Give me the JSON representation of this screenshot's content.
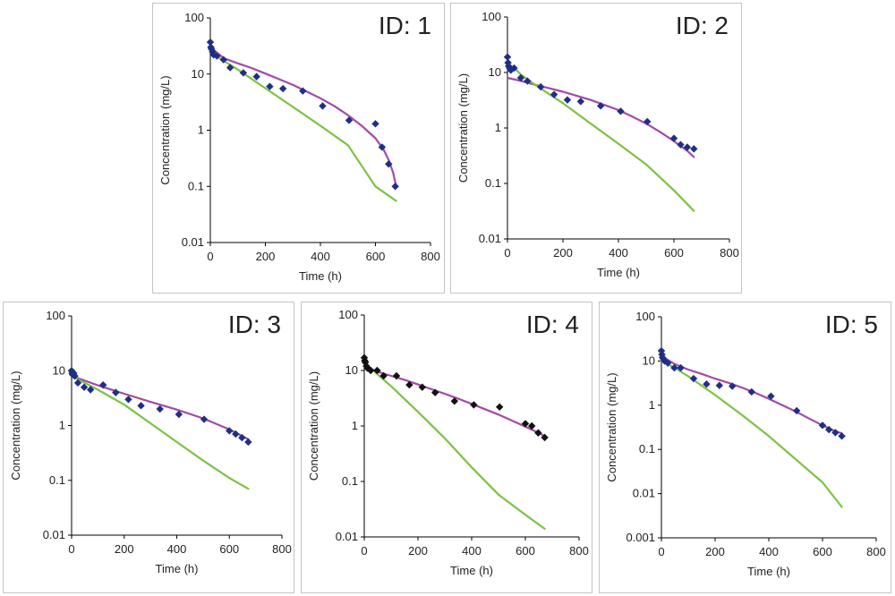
{
  "colors": {
    "marker_blue": "#1f2f86",
    "marker_black": "#111111",
    "fit_line": "#a24aa8",
    "other_line": "#7cc242",
    "axis": "#000000"
  },
  "chart_data": [
    {
      "type": "scatter",
      "title": "ID: 1",
      "xlabel": "Time (h)",
      "ylabel": "Concentration (mg/L)",
      "xlim": [
        0,
        800
      ],
      "ylim": [
        0.01,
        100
      ],
      "yscale": "log",
      "xticks": [
        "0",
        "200",
        "400",
        "600",
        "800"
      ],
      "yticks": [
        "0.01",
        "0.1",
        "1",
        "10",
        "100"
      ],
      "grid": false,
      "marker_color": "#1f2f86",
      "series": [
        {
          "type": "scatter",
          "x": [
            0,
            2,
            4,
            8,
            12,
            24,
            48,
            72,
            120,
            168,
            216,
            264,
            336,
            408,
            504,
            600,
            624,
            648,
            672
          ],
          "y": [
            37,
            30,
            28,
            25,
            22,
            21,
            18,
            13,
            10.5,
            9,
            6,
            5.5,
            5,
            2.7,
            1.5,
            1.3,
            0.5,
            0.25,
            0.1
          ]
        },
        {
          "type": "line",
          "color": "#a24aa8",
          "x": [
            0,
            50,
            100,
            150,
            200,
            250,
            300,
            350,
            400,
            450,
            500,
            550,
            600,
            630,
            650,
            665,
            675
          ],
          "y": [
            30,
            19,
            15.5,
            12.8,
            10.2,
            8.1,
            6.4,
            4.9,
            3.7,
            2.7,
            1.85,
            1.2,
            0.72,
            0.45,
            0.28,
            0.17,
            0.1
          ]
        },
        {
          "type": "line",
          "color": "#7cc242",
          "x": [
            0,
            50,
            100,
            200,
            300,
            400,
            500,
            600,
            675
          ],
          "y": [
            25,
            17,
            12,
            5.6,
            2.6,
            1.2,
            0.54,
            0.1,
            0.055
          ]
        }
      ]
    },
    {
      "type": "scatter",
      "title": "ID: 2",
      "xlabel": "Time (h)",
      "ylabel": "Concentration (mg/L)",
      "xlim": [
        0,
        800
      ],
      "ylim": [
        0.01,
        100
      ],
      "yscale": "log",
      "xticks": [
        "0",
        "200",
        "400",
        "600",
        "800"
      ],
      "yticks": [
        "0.01",
        "0.1",
        "1",
        "10",
        "100"
      ],
      "grid": false,
      "marker_color": "#1f2f86",
      "series": [
        {
          "type": "scatter",
          "x": [
            0,
            2,
            4,
            8,
            12,
            24,
            48,
            72,
            120,
            168,
            216,
            264,
            336,
            408,
            504,
            600,
            624,
            648,
            672
          ],
          "y": [
            19,
            15,
            13,
            12,
            11,
            12,
            8,
            7,
            5.5,
            4,
            3.2,
            3,
            2.5,
            2,
            1.3,
            0.65,
            0.5,
            0.45,
            0.42
          ]
        },
        {
          "type": "line",
          "color": "#a24aa8",
          "x": [
            0,
            50,
            100,
            150,
            200,
            250,
            300,
            350,
            400,
            450,
            500,
            550,
            600,
            650,
            672
          ],
          "y": [
            8,
            7,
            6,
            5.2,
            4.5,
            3.8,
            3.2,
            2.6,
            2.1,
            1.6,
            1.2,
            0.85,
            0.58,
            0.38,
            0.3
          ]
        },
        {
          "type": "line",
          "color": "#7cc242",
          "x": [
            0,
            25,
            50,
            100,
            200,
            300,
            400,
            500,
            600,
            672
          ],
          "y": [
            14,
            12,
            9,
            6,
            2.8,
            1.2,
            0.52,
            0.22,
            0.075,
            0.032
          ]
        }
      ]
    },
    {
      "type": "scatter",
      "title": "ID: 3",
      "xlabel": "Time (h)",
      "ylabel": "Concentration (mg/L)",
      "xlim": [
        0,
        800
      ],
      "ylim": [
        0.01,
        100
      ],
      "yscale": "log",
      "xticks": [
        "0",
        "200",
        "400",
        "600",
        "800"
      ],
      "yticks": [
        "0.01",
        "0.1",
        "1",
        "10",
        "100"
      ],
      "grid": false,
      "marker_color": "#1f2f86",
      "series": [
        {
          "type": "scatter",
          "x": [
            0,
            2,
            4,
            8,
            12,
            24,
            48,
            72,
            120,
            168,
            216,
            264,
            336,
            408,
            504,
            600,
            624,
            648,
            672
          ],
          "y": [
            10,
            9,
            8.5,
            9,
            8,
            6,
            5,
            4.5,
            5.5,
            4,
            3,
            2.3,
            2,
            1.6,
            1.3,
            0.8,
            0.7,
            0.6,
            0.5
          ]
        },
        {
          "type": "line",
          "color": "#a24aa8",
          "x": [
            0,
            50,
            100,
            200,
            300,
            400,
            500,
            600,
            672
          ],
          "y": [
            8,
            6.6,
            5.4,
            3.8,
            2.7,
            1.95,
            1.35,
            0.85,
            0.56
          ]
        },
        {
          "type": "line",
          "color": "#7cc242",
          "x": [
            0,
            50,
            100,
            200,
            300,
            400,
            500,
            600,
            672
          ],
          "y": [
            8,
            6,
            4.5,
            2.4,
            1.1,
            0.5,
            0.23,
            0.11,
            0.07
          ]
        }
      ]
    },
    {
      "type": "scatter",
      "title": "ID: 4",
      "xlabel": "Time (h)",
      "ylabel": "Concentration (mg/L)",
      "xlim": [
        0,
        800
      ],
      "ylim": [
        0.01,
        100
      ],
      "yscale": "log",
      "xticks": [
        "0",
        "200",
        "400",
        "600",
        "800"
      ],
      "yticks": [
        "0.01",
        "0.1",
        "1",
        "10",
        "100"
      ],
      "grid": false,
      "marker_color": "#111111",
      "series": [
        {
          "type": "scatter",
          "x": [
            0,
            2,
            4,
            8,
            12,
            24,
            48,
            72,
            120,
            168,
            216,
            264,
            336,
            408,
            504,
            600,
            624,
            648,
            672
          ],
          "y": [
            17,
            15,
            14,
            12,
            11,
            10,
            10,
            8,
            8,
            5.5,
            5,
            4,
            2.8,
            2.4,
            2.2,
            1.1,
            1,
            0.75,
            0.62
          ]
        },
        {
          "type": "line",
          "color": "#a24aa8",
          "x": [
            0,
            50,
            100,
            150,
            200,
            250,
            300,
            350,
            400,
            450,
            500,
            550,
            600,
            650,
            672
          ],
          "y": [
            12,
            9.5,
            8,
            6.8,
            5.6,
            4.6,
            3.8,
            3.1,
            2.5,
            2,
            1.6,
            1.25,
            0.97,
            0.75,
            0.65
          ]
        },
        {
          "type": "line",
          "color": "#7cc242",
          "x": [
            0,
            25,
            50,
            100,
            200,
            300,
            400,
            500,
            600,
            672
          ],
          "y": [
            14,
            11,
            8.5,
            5.2,
            1.8,
            0.6,
            0.18,
            0.058,
            0.025,
            0.014
          ]
        }
      ]
    },
    {
      "type": "scatter",
      "title": "ID: 5",
      "xlabel": "Time (h)",
      "ylabel": "Concentration (mg/L)",
      "xlim": [
        0,
        800
      ],
      "ylim": [
        0.001,
        100
      ],
      "yscale": "log",
      "xticks": [
        "0",
        "200",
        "400",
        "600",
        "800"
      ],
      "yticks": [
        "0.001",
        "0.01",
        "0.1",
        "1",
        "10",
        "100"
      ],
      "grid": false,
      "marker_color": "#1f2f86",
      "series": [
        {
          "type": "scatter",
          "x": [
            0,
            2,
            4,
            8,
            12,
            24,
            48,
            72,
            120,
            168,
            216,
            264,
            336,
            408,
            504,
            600,
            624,
            648,
            672
          ],
          "y": [
            17,
            14,
            12,
            11,
            10,
            9,
            7,
            7,
            4,
            3,
            2.8,
            2.7,
            2,
            1.6,
            0.75,
            0.35,
            0.28,
            0.24,
            0.2
          ]
        },
        {
          "type": "line",
          "color": "#a24aa8",
          "x": [
            0,
            50,
            100,
            150,
            200,
            250,
            300,
            350,
            400,
            450,
            500,
            550,
            600,
            640,
            672
          ],
          "y": [
            13,
            8.5,
            6.4,
            5.1,
            4,
            3.2,
            2.5,
            1.9,
            1.4,
            1,
            0.72,
            0.5,
            0.35,
            0.27,
            0.23
          ]
        },
        {
          "type": "line",
          "color": "#7cc242",
          "x": [
            0,
            50,
            100,
            200,
            300,
            400,
            500,
            600,
            672
          ],
          "y": [
            10,
            7,
            4.5,
            1.7,
            0.6,
            0.2,
            0.06,
            0.018,
            0.005
          ]
        }
      ]
    }
  ]
}
